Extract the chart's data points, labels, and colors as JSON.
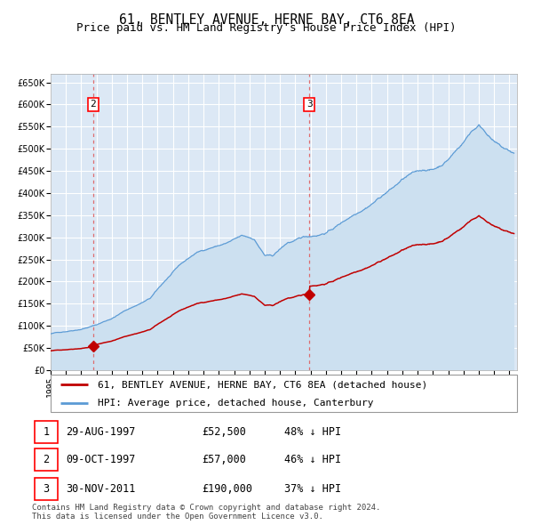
{
  "title": "61, BENTLEY AVENUE, HERNE BAY, CT6 8EA",
  "subtitle": "Price paid vs. HM Land Registry's House Price Index (HPI)",
  "legend_line1": "61, BENTLEY AVENUE, HERNE BAY, CT6 8EA (detached house)",
  "legend_line2": "HPI: Average price, detached house, Canterbury",
  "footer_line1": "Contains HM Land Registry data © Crown copyright and database right 2024.",
  "footer_line2": "This data is licensed under the Open Government Licence v3.0.",
  "transactions": [
    {
      "label": "1",
      "date": "29-AUG-1997",
      "date_num": 1997.655,
      "price": 52500,
      "note": "48% ↓ HPI"
    },
    {
      "label": "2",
      "date": "09-OCT-1997",
      "date_num": 1997.769,
      "price": 57000,
      "note": "46% ↓ HPI"
    },
    {
      "label": "3",
      "date": "30-NOV-2011",
      "date_num": 2011.915,
      "price": 190000,
      "note": "37% ↓ HPI"
    }
  ],
  "hpi_color": "#5b9bd5",
  "hpi_fill_color": "#cce0f0",
  "house_color": "#c00000",
  "dashed_line_color": "#e06060",
  "ylim": [
    0,
    670000
  ],
  "xlim": [
    1995.0,
    2025.5
  ],
  "plot_bg_color": "#dce8f5",
  "grid_color": "#ffffff",
  "title_fontsize": 10.5,
  "subtitle_fontsize": 9,
  "tick_fontsize": 7,
  "legend_fontsize": 8,
  "footer_fontsize": 6.5,
  "table_fontsize": 8.5
}
